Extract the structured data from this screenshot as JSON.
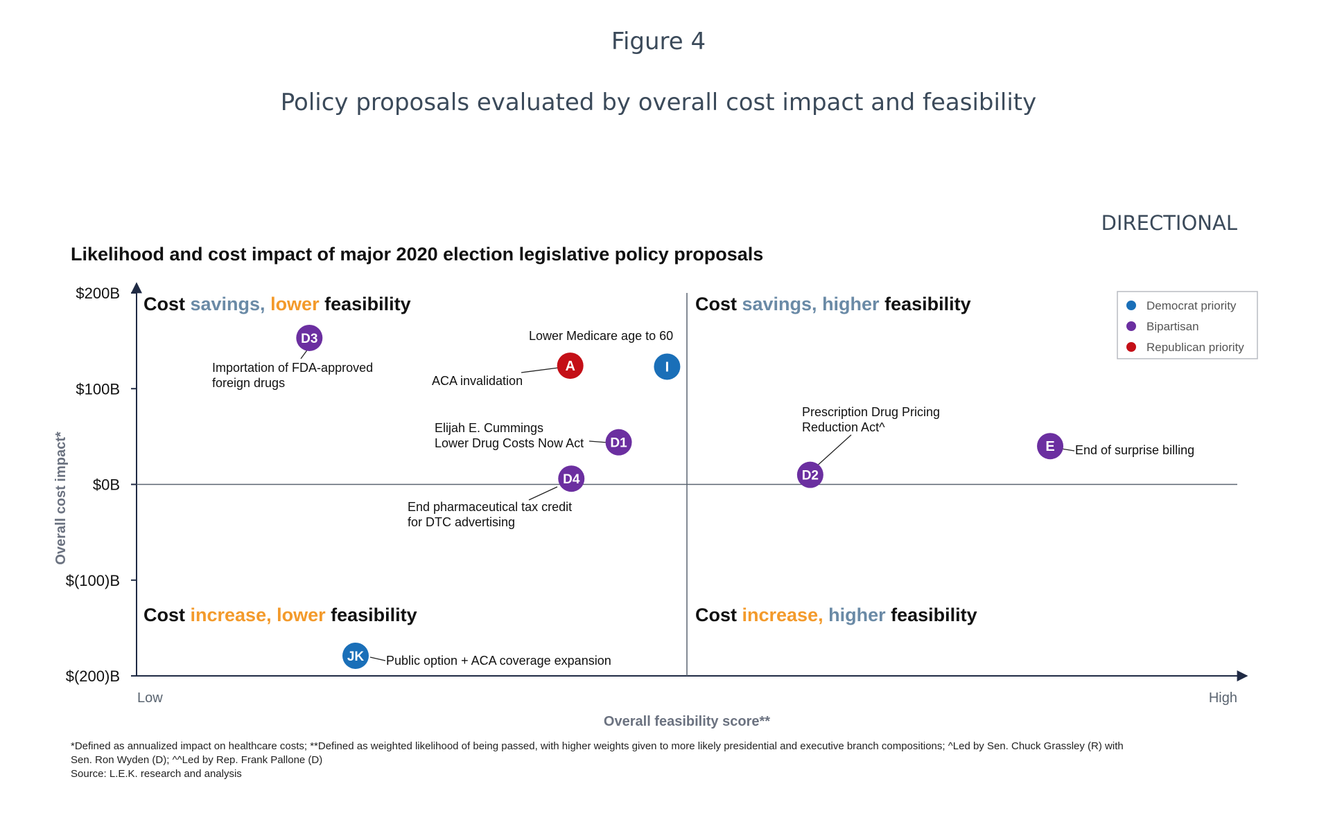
{
  "figure_label": "Figure 4",
  "subtitle": "Policy proposals evaluated by overall cost impact and feasibility",
  "directional": "DIRECTIONAL",
  "colors": {
    "democrat": "#1a6fb8",
    "bipartisan": "#6b2fa0",
    "republican": "#c40f17",
    "savings": "#6a8aa6",
    "increase": "#f39a2b",
    "text": "#111111",
    "axis": "#5a6470"
  },
  "chart_data": {
    "type": "scatter",
    "title": "Likelihood and cost impact of major 2020 election legislative policy proposals",
    "xlabel": "Overall feasibility score**",
    "ylabel": "Overall cost impact*",
    "xlim": [
      0,
      100
    ],
    "ylim": [
      -200,
      200
    ],
    "x_tick_labels": {
      "low": "Low",
      "high": "High"
    },
    "y_ticks": [
      {
        "value": 200,
        "label": "$200B"
      },
      {
        "value": 100,
        "label": "$100B"
      },
      {
        "value": 0,
        "label": "$0B"
      },
      {
        "value": -100,
        "label": "$(100)B"
      },
      {
        "value": -200,
        "label": "$(200)B"
      }
    ],
    "x_divider": 50,
    "legend": {
      "position": "top-right",
      "entries": [
        {
          "key": "democrat",
          "label": "Democrat priority"
        },
        {
          "key": "bipartisan",
          "label": "Bipartisan"
        },
        {
          "key": "republican",
          "label": "Republican priority"
        }
      ]
    },
    "quadrants": [
      {
        "pos": "top-left",
        "parts": [
          [
            "Cost ",
            "text"
          ],
          [
            "savings, ",
            "savings"
          ],
          [
            "lower ",
            "increase"
          ],
          [
            "feasibility",
            "text"
          ]
        ]
      },
      {
        "pos": "top-right",
        "parts": [
          [
            "Cost ",
            "text"
          ],
          [
            "savings, ",
            "savings"
          ],
          [
            "higher ",
            "savings"
          ],
          [
            "feasibility",
            "text"
          ]
        ]
      },
      {
        "pos": "bottom-left",
        "parts": [
          [
            "Cost ",
            "text"
          ],
          [
            "increase, ",
            "increase"
          ],
          [
            "lower ",
            "increase"
          ],
          [
            "feasibility",
            "text"
          ]
        ]
      },
      {
        "pos": "bottom-right",
        "parts": [
          [
            "Cost ",
            "text"
          ],
          [
            "increase, ",
            "increase"
          ],
          [
            "higher ",
            "savings"
          ],
          [
            "feasibility",
            "text"
          ]
        ]
      }
    ],
    "points": [
      {
        "id": "D3",
        "x": 15.7,
        "y": 153,
        "party": "bipartisan",
        "label": [
          "Importation of FDA-approved",
          "foreign drugs"
        ]
      },
      {
        "id": "A",
        "x": 39.4,
        "y": 124,
        "party": "republican",
        "label": [
          "ACA invalidation"
        ]
      },
      {
        "id": "I",
        "x": 48.2,
        "y": 123,
        "party": "democrat",
        "label": [
          "Lower Medicare age to 60"
        ]
      },
      {
        "id": "D1",
        "x": 43.8,
        "y": 44,
        "party": "bipartisan",
        "label": [
          "Elijah E. Cummings",
          "Lower Drug Costs Now Act"
        ]
      },
      {
        "id": "D4",
        "x": 39.5,
        "y": 6,
        "party": "bipartisan",
        "label": [
          "End pharmaceutical tax credit",
          "for DTC advertising"
        ]
      },
      {
        "id": "D2",
        "x": 61.2,
        "y": 10,
        "party": "bipartisan",
        "label": [
          "Prescription Drug Pricing",
          "Reduction Act^"
        ]
      },
      {
        "id": "E",
        "x": 83.0,
        "y": 40,
        "party": "bipartisan",
        "label": [
          "End of surprise billing"
        ]
      },
      {
        "id": "JK",
        "x": 19.9,
        "y": -179,
        "party": "democrat",
        "label": [
          "Public option + ACA coverage expansion"
        ]
      }
    ]
  },
  "footnotes": [
    "*Defined as annualized impact on healthcare costs; **Defined as weighted likelihood of being passed, with higher weights given to more likely presidential and executive branch compositions; ^Led by Sen. Chuck Grassley (R) with",
    "Sen. Ron Wyden (D); ^^Led by Rep. Frank Pallone (D)",
    "Source: L.E.K. research and analysis"
  ]
}
